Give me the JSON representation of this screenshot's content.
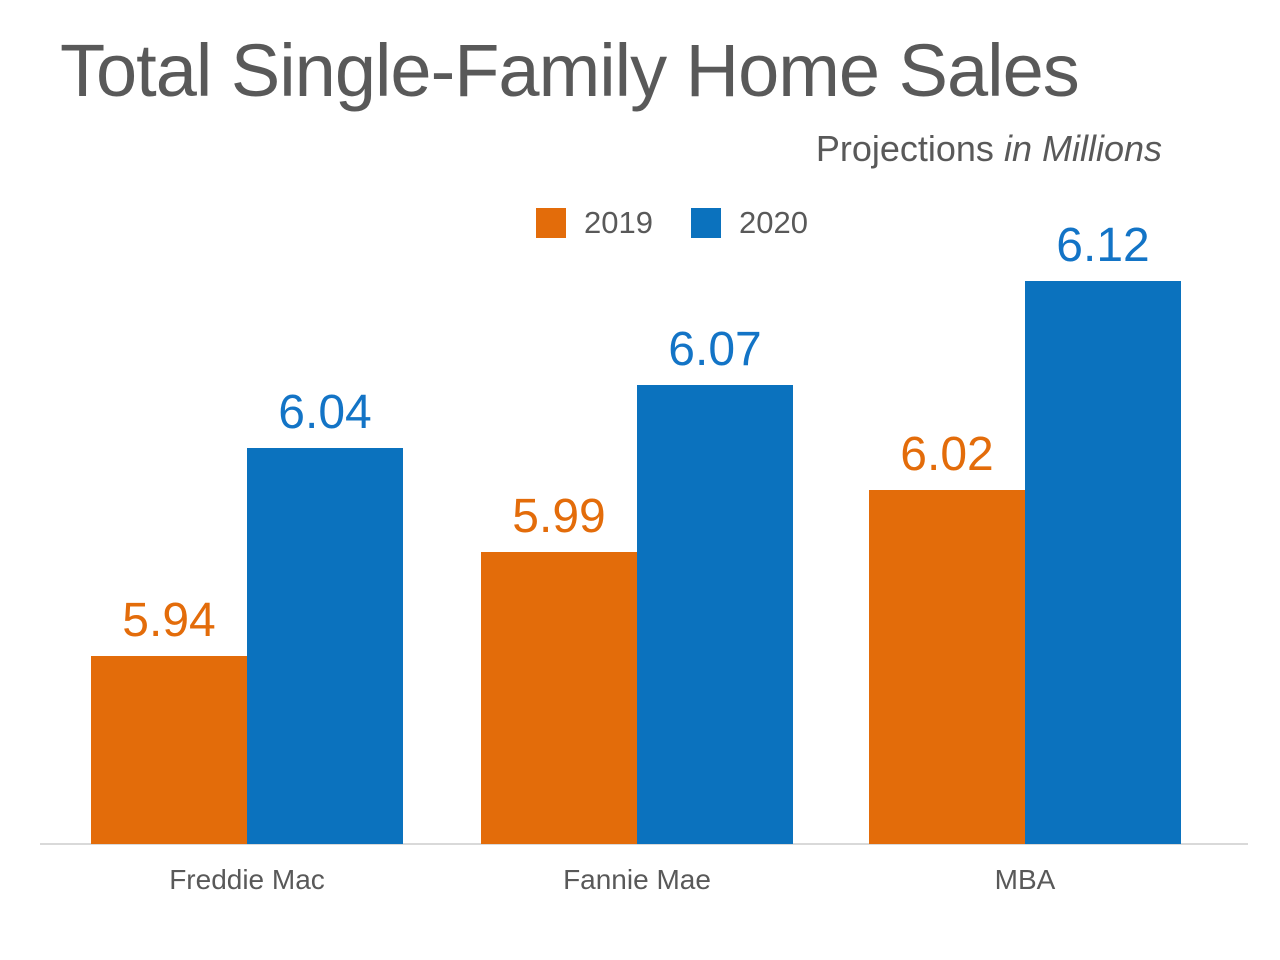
{
  "title": "Total Single-Family Home Sales",
  "subtitle": {
    "regular": "Projections",
    "italic": "in Millions"
  },
  "colors": {
    "text_gray": "#595959",
    "orange": "#e36c0a",
    "blue": "#0b72be",
    "blue_label": "#1374c6",
    "axis_line": "#d9d9d9"
  },
  "chart_data": {
    "type": "bar",
    "categories": [
      "Freddie Mac",
      "Fannie Mae",
      "MBA"
    ],
    "series": [
      {
        "name": "2019",
        "color": "#e36c0a",
        "label_color": "#e36c0a",
        "values": [
          5.94,
          5.99,
          6.02
        ]
      },
      {
        "name": "2020",
        "color": "#0b72be",
        "label_color": "#1374c6",
        "values": [
          6.04,
          6.07,
          6.12
        ]
      }
    ],
    "title": "Total Single-Family Home Sales",
    "subtitle": "Projections in Millions",
    "xlabel": "",
    "ylabel": "",
    "ylim": [
      5.85,
      6.135
    ],
    "grid": false,
    "value_labels_shown": true,
    "legend_position": "top-center",
    "value_label_format": "0.00"
  }
}
